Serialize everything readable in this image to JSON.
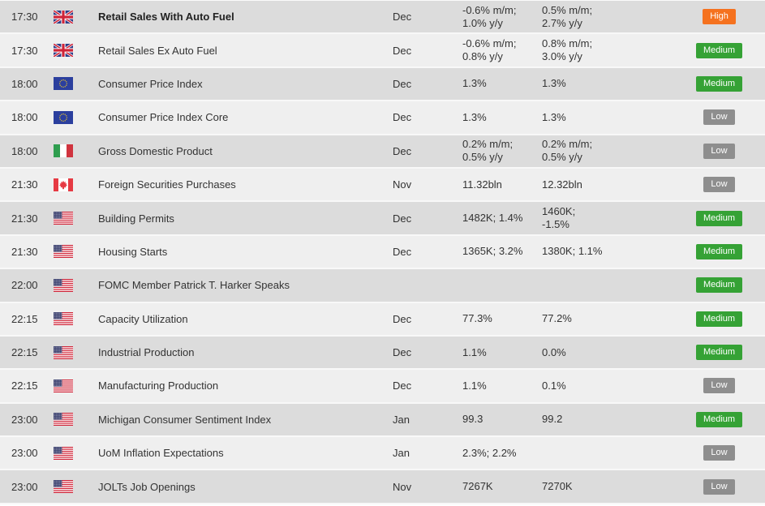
{
  "colors": {
    "importance_high": "#f5721f",
    "importance_medium": "#35a235",
    "importance_low": "#8e8e8e",
    "row_dark": "#dcdcdc",
    "row_light": "#efefef"
  },
  "table": {
    "rows": [
      {
        "time": "17:30",
        "country": "GB",
        "event": "Retail Sales With Auto Fuel",
        "period": "Dec",
        "actual": "-0.6% m/m;\n1.0% y/y",
        "forecast": "0.5% m/m;\n2.7% y/y",
        "importance": "High"
      },
      {
        "time": "17:30",
        "country": "GB",
        "event": "Retail Sales Ex Auto Fuel",
        "period": "Dec",
        "actual": "-0.6% m/m;\n0.8% y/y",
        "forecast": "0.8% m/m;\n3.0% y/y",
        "importance": "Medium"
      },
      {
        "time": "18:00",
        "country": "EU",
        "event": "Consumer Price Index",
        "period": "Dec",
        "actual": "1.3%",
        "forecast": "1.3%",
        "importance": "Medium"
      },
      {
        "time": "18:00",
        "country": "EU",
        "event": "Consumer Price Index Core",
        "period": "Dec",
        "actual": "1.3%",
        "forecast": "1.3%",
        "importance": "Low"
      },
      {
        "time": "18:00",
        "country": "IT",
        "event": "Gross Domestic Product",
        "period": "Dec",
        "actual": "0.2% m/m;\n0.5% y/y",
        "forecast": "0.2% m/m;\n0.5% y/y",
        "importance": "Low"
      },
      {
        "time": "21:30",
        "country": "CA",
        "event": "Foreign Securities Purchases",
        "period": "Nov",
        "actual": "11.32bln",
        "forecast": "12.32bln",
        "importance": "Low"
      },
      {
        "time": "21:30",
        "country": "US",
        "event": "Building Permits",
        "period": "Dec",
        "actual": "1482K; 1.4%",
        "forecast": "1460K;\n-1.5%",
        "importance": "Medium"
      },
      {
        "time": "21:30",
        "country": "US",
        "event": "Housing Starts",
        "period": "Dec",
        "actual": "1365K; 3.2%",
        "forecast": "1380K; 1.1%",
        "importance": "Medium"
      },
      {
        "time": "22:00",
        "country": "US",
        "event": "FOMC Member Patrick T. Harker Speaks",
        "period": "",
        "actual": "",
        "forecast": "",
        "importance": "Medium"
      },
      {
        "time": "22:15",
        "country": "US",
        "event": "Capacity Utilization",
        "period": "Dec",
        "actual": "77.3%",
        "forecast": "77.2%",
        "importance": "Medium"
      },
      {
        "time": "22:15",
        "country": "US",
        "event": "Industrial Production",
        "period": "Dec",
        "actual": "1.1%",
        "forecast": "0.0%",
        "importance": "Medium"
      },
      {
        "time": "22:15",
        "country": "US",
        "event": "Manufacturing Production",
        "period": "Dec",
        "actual": "1.1%",
        "forecast": "0.1%",
        "importance": "Low"
      },
      {
        "time": "23:00",
        "country": "US",
        "event": "Michigan Consumer Sentiment Index",
        "period": "Jan",
        "actual": "99.3",
        "forecast": "99.2",
        "importance": "Medium"
      },
      {
        "time": "23:00",
        "country": "US",
        "event": "UoM Inflation Expectations",
        "period": "Jan",
        "actual": "2.3%; 2.2%",
        "forecast": "",
        "importance": "Low"
      },
      {
        "time": "23:00",
        "country": "US",
        "event": "JOLTs Job Openings",
        "period": "Nov",
        "actual": "7267K",
        "forecast": "7270K",
        "importance": "Low"
      }
    ]
  }
}
